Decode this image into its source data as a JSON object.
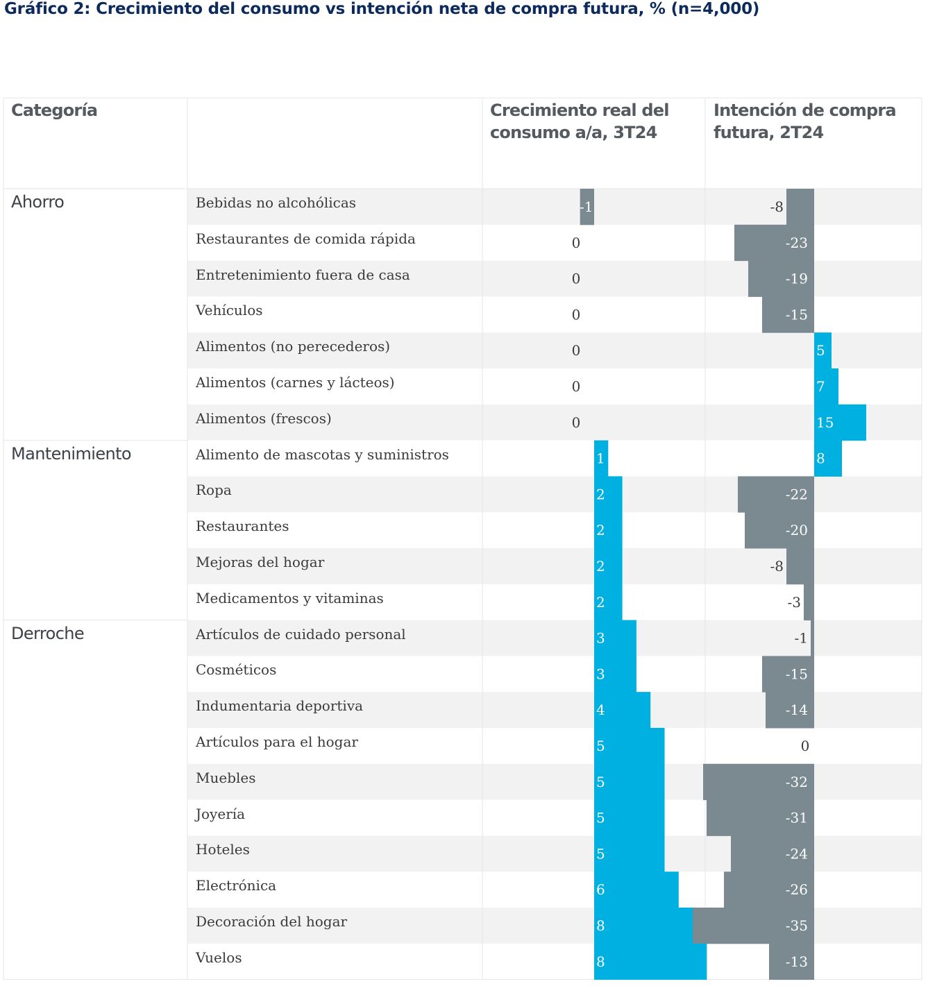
{
  "title": "Gráfico 2: Crecimiento del consumo vs intención neta de compra futura, % (n=4,000)",
  "chart_data": {
    "type": "bar",
    "columns": {
      "category": "Categoría",
      "consumption_line1": "Crecimiento real del",
      "consumption_line2": "consumo a/a, 3T24",
      "intention_line1": "Intención de compra",
      "intention_line2": "futura, 2T24"
    },
    "groups": [
      {
        "name": "Ahorro",
        "start_row": 0
      },
      {
        "name": "Mantenimiento",
        "start_row": 7
      },
      {
        "name": "Derroche",
        "start_row": 12
      }
    ],
    "categories": [
      "Bebidas no alcohólicas",
      "Restaurantes de comida rápida",
      "Entretenimiento fuera de casa",
      "Vehículos",
      "Alimentos (no perecederos)",
      "Alimentos (carnes y lácteos)",
      "Alimentos (frescos)",
      "Alimento de mascotas y suministros",
      "Ropa",
      "Restaurantes",
      "Mejoras del hogar",
      "Medicamentos y vitaminas",
      "Artículos de cuidado personal",
      "Cosméticos",
      "Indumentaria deportiva",
      "Artículos para el hogar",
      "Muebles",
      "Joyería",
      "Hoteles",
      "Electrónica",
      "Decoración del hogar",
      "Vuelos"
    ],
    "series": [
      {
        "name": "Crecimiento real del consumo a/a, 3T24",
        "values": [
          -1,
          0,
          0,
          0,
          0,
          0,
          0,
          1,
          2,
          2,
          2,
          2,
          3,
          3,
          4,
          5,
          5,
          5,
          5,
          6,
          8,
          8
        ]
      },
      {
        "name": "Intención de compra futura, 2T24",
        "values": [
          -8,
          -23,
          -19,
          -15,
          5,
          7,
          15,
          8,
          -22,
          -20,
          -8,
          -3,
          -1,
          -15,
          -14,
          0,
          -32,
          -31,
          -24,
          -26,
          -35,
          -13
        ]
      }
    ],
    "colors": {
      "positive": "#00b0e0",
      "negative": "#7a8a90",
      "stripe": "#f2f2f2",
      "grid": "#e6e6e6"
    }
  }
}
